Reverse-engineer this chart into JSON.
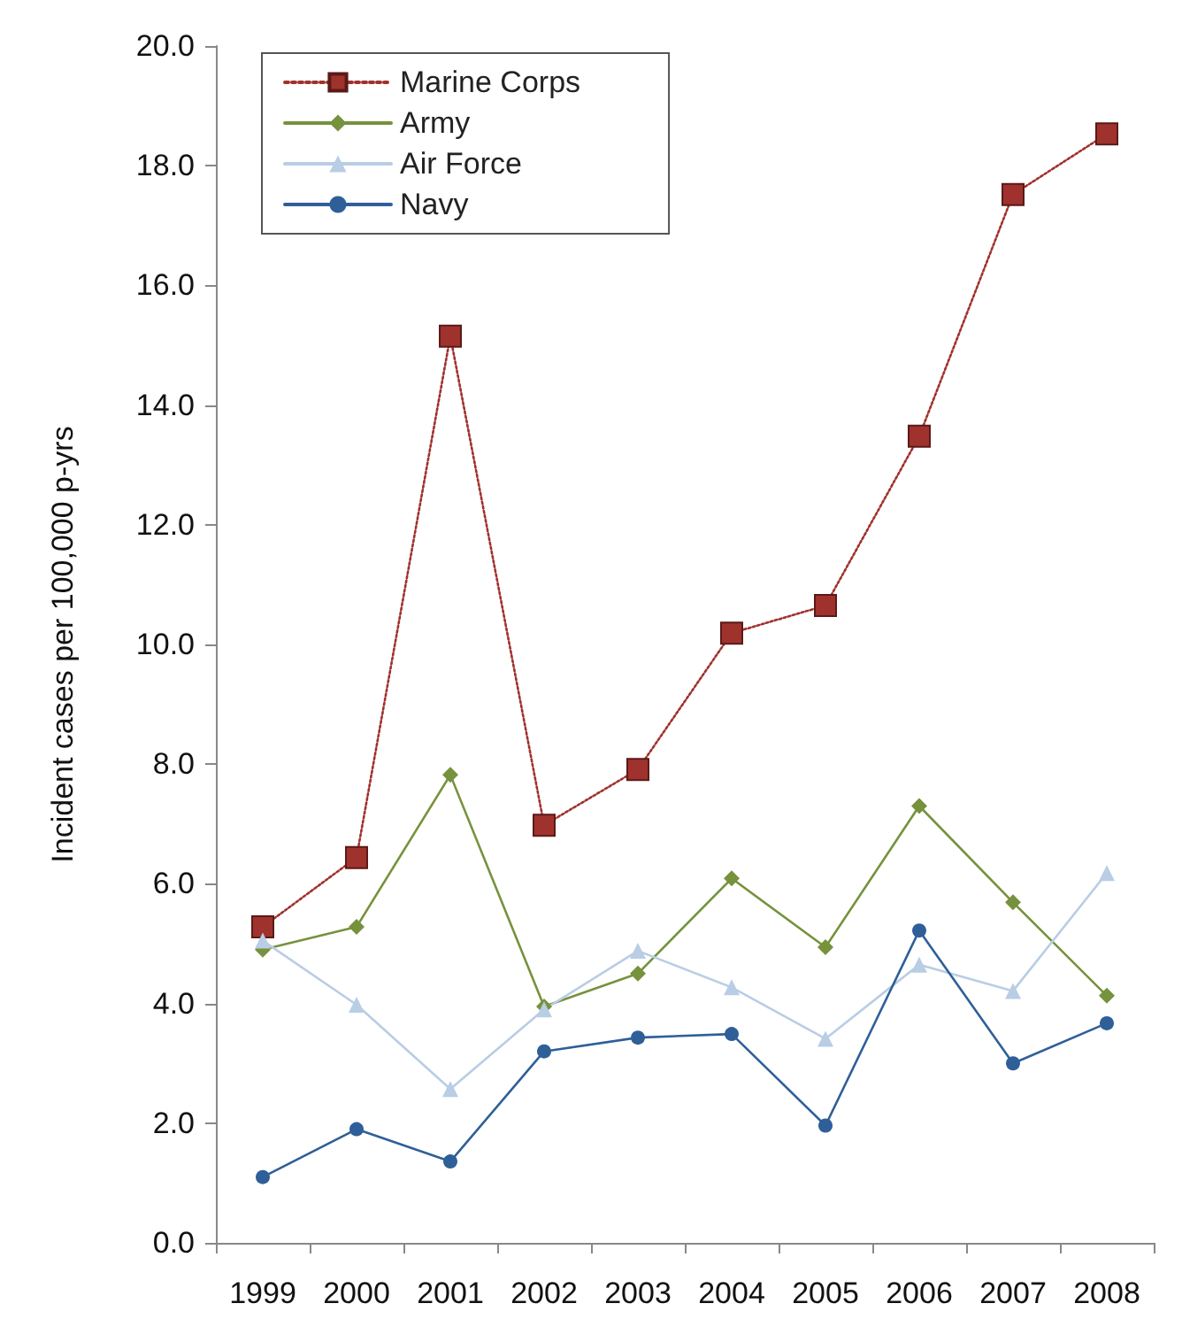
{
  "chart_data": {
    "type": "line",
    "ylabel": "Incident cases per 100,000 p-yrs",
    "categories": [
      "1999",
      "2000",
      "2001",
      "2002",
      "2003",
      "2004",
      "2005",
      "2006",
      "2007",
      "2008"
    ],
    "series": [
      {
        "name": "Marine Corps",
        "color": "#a0322d",
        "marker": "square",
        "line_style": "dotted",
        "values": [
          5.28,
          6.44,
          15.15,
          6.98,
          7.91,
          10.19,
          10.65,
          13.48,
          17.52,
          18.53
        ]
      },
      {
        "name": "Army",
        "color": "#76923c",
        "marker": "diamond",
        "line_style": "solid",
        "values": [
          4.9,
          5.28,
          7.82,
          3.95,
          4.5,
          6.09,
          4.94,
          7.3,
          5.69,
          4.13
        ]
      },
      {
        "name": "Air Force",
        "color": "#b9cde5",
        "marker": "triangle",
        "line_style": "solid",
        "values": [
          5.05,
          3.98,
          2.57,
          3.9,
          4.88,
          4.27,
          3.41,
          4.65,
          4.21,
          6.18
        ]
      },
      {
        "name": "Navy",
        "color": "#2f5f98",
        "marker": "circle",
        "line_style": "solid",
        "values": [
          1.1,
          1.9,
          1.36,
          3.2,
          3.43,
          3.49,
          1.96,
          5.22,
          3.0,
          3.67
        ]
      }
    ],
    "ylim": [
      0,
      20
    ],
    "yticks": [
      {
        "value": 0,
        "label": "0.0"
      },
      {
        "value": 2,
        "label": "2.0"
      },
      {
        "value": 4,
        "label": "4.0"
      },
      {
        "value": 6,
        "label": "6.0"
      },
      {
        "value": 8,
        "label": "8.0"
      },
      {
        "value": 10,
        "label": "10.0"
      },
      {
        "value": 12,
        "label": "12.0"
      },
      {
        "value": 14,
        "label": "14.0"
      },
      {
        "value": 16,
        "label": "16.0"
      },
      {
        "value": 18,
        "label": "18.0"
      },
      {
        "value": 20,
        "label": "20.0"
      }
    ],
    "grid": false,
    "legend": "top left"
  }
}
